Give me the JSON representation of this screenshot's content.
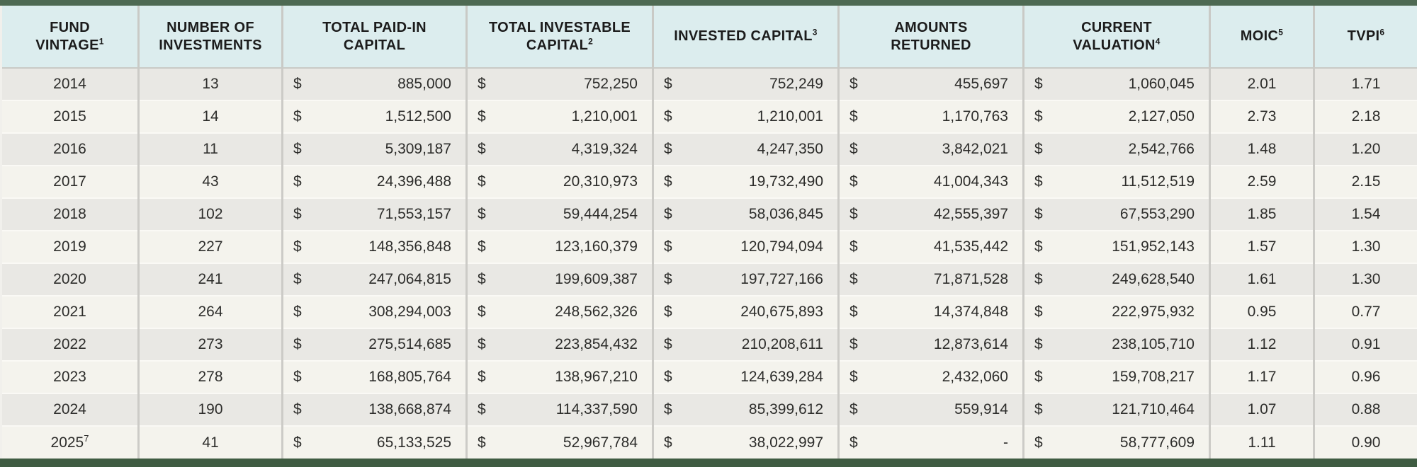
{
  "colors": {
    "top_bar_green": "#4e6a53",
    "bottom_bar_green": "#3f5c42",
    "header_background": "#dcedee",
    "row_gray": "#e9e8e4",
    "row_cream": "#f4f3ed",
    "column_divider": "#cccbc7",
    "row_divider": "#faf9f5",
    "header_text": "#1c1c1c",
    "body_text": "#2d2d2b"
  },
  "chart_data": {
    "type": "table",
    "title": "",
    "currency_symbol": "$",
    "columns": [
      {
        "key": "vintage",
        "type": "center",
        "lines": [
          "FUND",
          "VINTAGE"
        ],
        "sup": "1"
      },
      {
        "key": "investments",
        "type": "center",
        "lines": [
          "NUMBER OF",
          "INVESTMENTS"
        ],
        "sup": ""
      },
      {
        "key": "paid_in",
        "type": "money",
        "lines": [
          "TOTAL PAID-IN",
          "CAPITAL"
        ],
        "sup": ""
      },
      {
        "key": "investable",
        "type": "money",
        "lines": [
          "TOTAL INVESTABLE",
          "CAPITAL"
        ],
        "sup": "2"
      },
      {
        "key": "invested",
        "type": "money",
        "lines": [
          "INVESTED CAPITAL"
        ],
        "sup": "3"
      },
      {
        "key": "returned",
        "type": "money",
        "lines": [
          "AMOUNTS",
          "RETURNED"
        ],
        "sup": ""
      },
      {
        "key": "valuation",
        "type": "money",
        "lines": [
          "CURRENT",
          "VALUATION"
        ],
        "sup": "4"
      },
      {
        "key": "moic",
        "type": "center",
        "lines": [
          "MOIC"
        ],
        "sup": "5"
      },
      {
        "key": "tvpi",
        "type": "center",
        "lines": [
          "TVPI"
        ],
        "sup": "6"
      }
    ],
    "rows": [
      {
        "vintage": "2014",
        "vintage_sup": "",
        "investments": "13",
        "paid_in": "885,000",
        "investable": "752,250",
        "invested": "752,249",
        "returned": "455,697",
        "valuation": "1,060,045",
        "moic": "2.01",
        "tvpi": "1.71"
      },
      {
        "vintage": "2015",
        "vintage_sup": "",
        "investments": "14",
        "paid_in": "1,512,500",
        "investable": "1,210,001",
        "invested": "1,210,001",
        "returned": "1,170,763",
        "valuation": "2,127,050",
        "moic": "2.73",
        "tvpi": "2.18"
      },
      {
        "vintage": "2016",
        "vintage_sup": "",
        "investments": "11",
        "paid_in": "5,309,187",
        "investable": "4,319,324",
        "invested": "4,247,350",
        "returned": "3,842,021",
        "valuation": "2,542,766",
        "moic": "1.48",
        "tvpi": "1.20"
      },
      {
        "vintage": "2017",
        "vintage_sup": "",
        "investments": "43",
        "paid_in": "24,396,488",
        "investable": "20,310,973",
        "invested": "19,732,490",
        "returned": "41,004,343",
        "valuation": "11,512,519",
        "moic": "2.59",
        "tvpi": "2.15"
      },
      {
        "vintage": "2018",
        "vintage_sup": "",
        "investments": "102",
        "paid_in": "71,553,157",
        "investable": "59,444,254",
        "invested": "58,036,845",
        "returned": "42,555,397",
        "valuation": "67,553,290",
        "moic": "1.85",
        "tvpi": "1.54"
      },
      {
        "vintage": "2019",
        "vintage_sup": "",
        "investments": "227",
        "paid_in": "148,356,848",
        "investable": "123,160,379",
        "invested": "120,794,094",
        "returned": "41,535,442",
        "valuation": "151,952,143",
        "moic": "1.57",
        "tvpi": "1.30"
      },
      {
        "vintage": "2020",
        "vintage_sup": "",
        "investments": "241",
        "paid_in": "247,064,815",
        "investable": "199,609,387",
        "invested": "197,727,166",
        "returned": "71,871,528",
        "valuation": "249,628,540",
        "moic": "1.61",
        "tvpi": "1.30"
      },
      {
        "vintage": "2021",
        "vintage_sup": "",
        "investments": "264",
        "paid_in": "308,294,003",
        "investable": "248,562,326",
        "invested": "240,675,893",
        "returned": "14,374,848",
        "valuation": "222,975,932",
        "moic": "0.95",
        "tvpi": "0.77"
      },
      {
        "vintage": "2022",
        "vintage_sup": "",
        "investments": "273",
        "paid_in": "275,514,685",
        "investable": "223,854,432",
        "invested": "210,208,611",
        "returned": "12,873,614",
        "valuation": "238,105,710",
        "moic": "1.12",
        "tvpi": "0.91"
      },
      {
        "vintage": "2023",
        "vintage_sup": "",
        "investments": "278",
        "paid_in": "168,805,764",
        "investable": "138,967,210",
        "invested": "124,639,284",
        "returned": "2,432,060",
        "valuation": "159,708,217",
        "moic": "1.17",
        "tvpi": "0.96"
      },
      {
        "vintage": "2024",
        "vintage_sup": "",
        "investments": "190",
        "paid_in": "138,668,874",
        "investable": "114,337,590",
        "invested": "85,399,612",
        "returned": "559,914",
        "valuation": "121,710,464",
        "moic": "1.07",
        "tvpi": "0.88"
      },
      {
        "vintage": "2025",
        "vintage_sup": "7",
        "investments": "41",
        "paid_in": "65,133,525",
        "investable": "52,967,784",
        "invested": "38,022,997",
        "returned": "-",
        "valuation": "58,777,609",
        "moic": "1.11",
        "tvpi": "0.90"
      }
    ]
  }
}
